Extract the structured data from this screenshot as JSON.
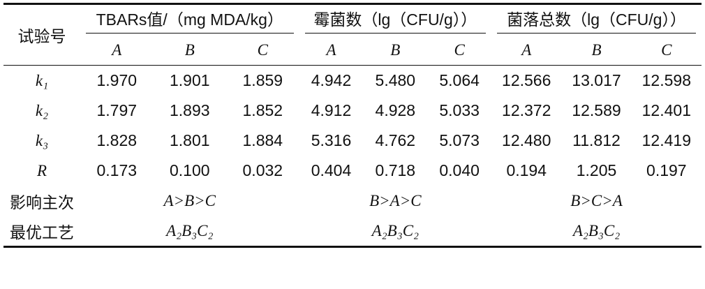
{
  "table": {
    "corner": "试验号",
    "groups": [
      "TBARs值/（mg MDA/kg）",
      "霉菌数（lg（CFU/g））",
      "菌落总数（lg（CFU/g））"
    ],
    "subheaders": [
      "A",
      "B",
      "C",
      "A",
      "B",
      "C",
      "A",
      "B",
      "C"
    ],
    "rows": [
      {
        "label": "k₁",
        "cells": [
          "1.970",
          "1.901",
          "1.859",
          "4.942",
          "5.480",
          "5.064",
          "12.566",
          "13.017",
          "12.598"
        ]
      },
      {
        "label": "k₂",
        "cells": [
          "1.797",
          "1.893",
          "1.852",
          "4.912",
          "4.928",
          "5.033",
          "12.372",
          "12.589",
          "12.401"
        ]
      },
      {
        "label": "k₃",
        "cells": [
          "1.828",
          "1.801",
          "1.884",
          "5.316",
          "4.762",
          "5.073",
          "12.480",
          "11.812",
          "12.419"
        ]
      },
      {
        "label": "R",
        "cells": [
          "0.173",
          "0.100",
          "0.032",
          "0.404",
          "0.718",
          "0.040",
          "0.194",
          "1.205",
          "0.197"
        ]
      }
    ],
    "summary": [
      {
        "label": "影响主次",
        "cells": [
          "A>B>C",
          "B>A>C",
          "B>C>A"
        ]
      },
      {
        "label": "最优工艺",
        "cells": [
          "A₂B₃C₂",
          "A₂B₃C₂",
          "A₂B₃C₂"
        ]
      }
    ]
  }
}
